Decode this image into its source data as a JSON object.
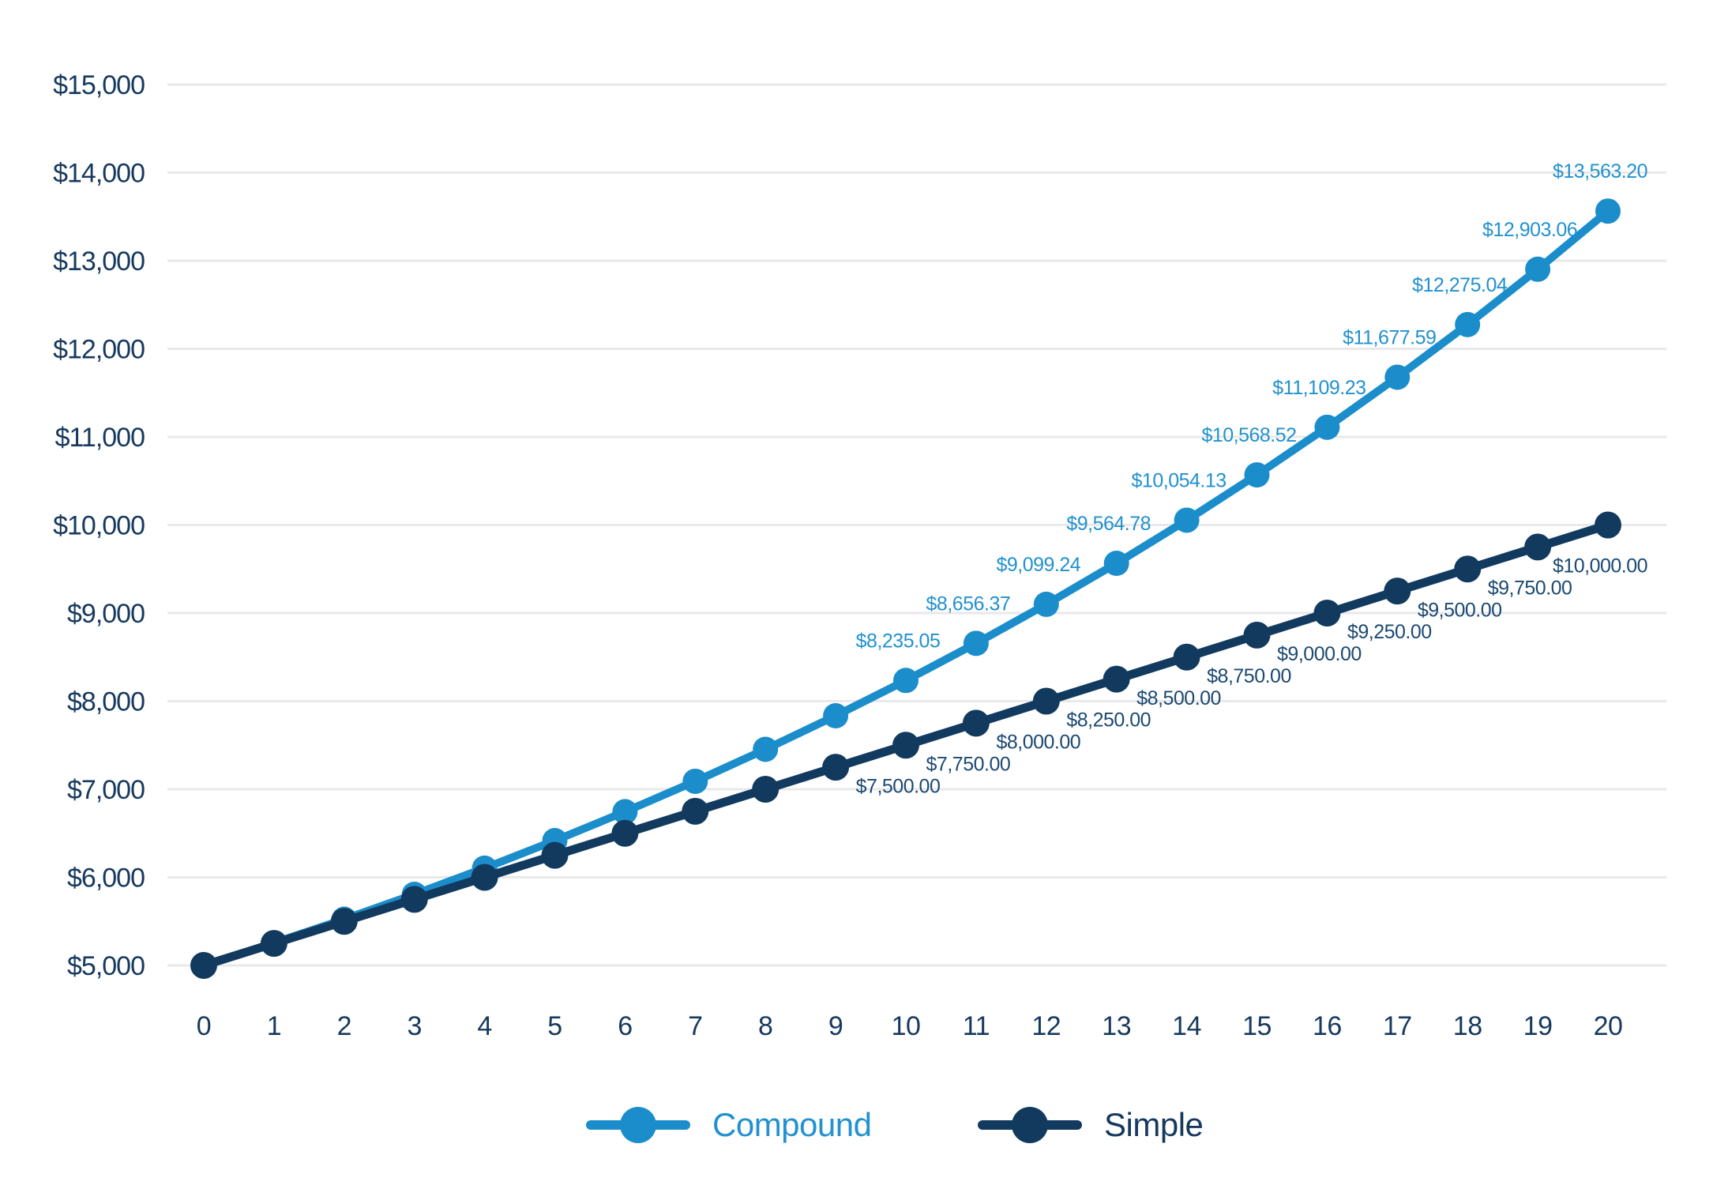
{
  "chart_data": {
    "type": "line",
    "x": [
      0,
      1,
      2,
      3,
      4,
      5,
      6,
      7,
      8,
      9,
      10,
      11,
      12,
      13,
      14,
      15,
      16,
      17,
      18,
      19,
      20
    ],
    "xticks": [
      "0",
      "1",
      "2",
      "3",
      "4",
      "5",
      "6",
      "7",
      "8",
      "9",
      "10",
      "11",
      "12",
      "13",
      "14",
      "15",
      "16",
      "17",
      "18",
      "19",
      "20"
    ],
    "yticks": [
      {
        "value": 5000,
        "label": "$5,000"
      },
      {
        "value": 6000,
        "label": "$6,000"
      },
      {
        "value": 7000,
        "label": "$7,000"
      },
      {
        "value": 8000,
        "label": "$8,000"
      },
      {
        "value": 9000,
        "label": "$9,000"
      },
      {
        "value": 10000,
        "label": "$10,000"
      },
      {
        "value": 11000,
        "label": "$11,000"
      },
      {
        "value": 12000,
        "label": "$12,000"
      },
      {
        "value": 13000,
        "label": "$13,000"
      },
      {
        "value": 14000,
        "label": "$14,000"
      },
      {
        "value": 15000,
        "label": "$15,000"
      }
    ],
    "ylim": [
      5000,
      15000
    ],
    "grid": true,
    "gridline_color": "#e9e9eb",
    "axis_text_color": "#16395E",
    "series": [
      {
        "name": "Compound",
        "color": "#1B8DCB",
        "label_text_color": "#2191CF",
        "values": [
          5000.0,
          5255.81,
          5524.71,
          5807.36,
          6104.48,
          6416.79,
          6745.09,
          7090.19,
          7452.94,
          7834.25,
          8235.05,
          8656.37,
          9099.24,
          9564.78,
          10054.13,
          10568.52,
          11109.23,
          11677.59,
          12275.04,
          12903.06,
          13563.2
        ],
        "point_labels_start_year": 10,
        "point_labels": [
          "$8,235.05",
          "$8,656.37",
          "$9,099.24",
          "$9,564.78",
          "$10,054.13",
          "$10,568.52",
          "$11,109.23",
          "$11,677.59",
          "$12,275.04",
          "$12,903.06",
          "$13,563.20"
        ],
        "label_position": "above"
      },
      {
        "name": "Simple",
        "color": "#123A5F",
        "label_text_color": "#1B4971",
        "values": [
          5000,
          5250,
          5500,
          5750,
          6000,
          6250,
          6500,
          6750,
          7000,
          7250,
          7500,
          7750,
          8000,
          8250,
          8500,
          8750,
          9000,
          9250,
          9500,
          9750,
          10000
        ],
        "point_labels_start_year": 10,
        "point_labels": [
          "$7,500.00",
          "$7,750.00",
          "$8,000.00",
          "$8,250.00",
          "$8,500.00",
          "$8,750.00",
          "$9,000.00",
          "$9,250.00",
          "$9,500.00",
          "$9,750.00",
          "$10,000.00"
        ],
        "label_position": "below"
      }
    ],
    "legend": {
      "position": "bottom",
      "items": [
        {
          "label": "Compound",
          "color": "#1B8DCB",
          "text_color": "#2191CF"
        },
        {
          "label": "Simple",
          "color": "#123A5F",
          "text_color": "#16395E"
        }
      ]
    }
  }
}
